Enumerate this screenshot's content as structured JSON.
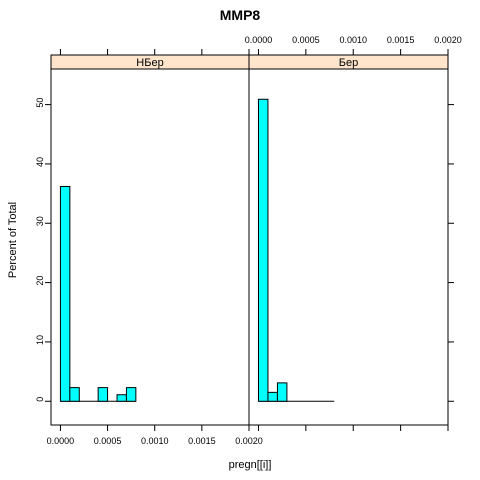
{
  "chart_data": {
    "type": "bar",
    "title": "MMP8",
    "xlabel": "pregn[[i]]",
    "ylabel": "Percent of Total",
    "x_ticks": [
      "0.0000",
      "0.0005",
      "0.0010",
      "0.0015",
      "0.0020"
    ],
    "y_ticks": [
      "0",
      "10",
      "20",
      "30",
      "40",
      "50"
    ],
    "xlim": [
      -0.0001,
      0.002
    ],
    "ylim": [
      -4,
      56
    ],
    "colors": {
      "bar_fill": "#00ffff",
      "strip_fill": "#ffe5cc"
    },
    "panels": [
      {
        "strip": "НБер",
        "bins": [
          {
            "x0": 0.0,
            "x1": 0.0001,
            "percent": 36.2
          },
          {
            "x0": 0.0001,
            "x1": 0.0002,
            "percent": 2.3
          },
          {
            "x0": 0.0002,
            "x1": 0.0003,
            "percent": 0
          },
          {
            "x0": 0.0003,
            "x1": 0.0004,
            "percent": 0
          },
          {
            "x0": 0.0004,
            "x1": 0.0005,
            "percent": 2.3
          },
          {
            "x0": 0.0005,
            "x1": 0.0006,
            "percent": 0
          },
          {
            "x0": 0.0006,
            "x1": 0.0007,
            "percent": 1.1
          },
          {
            "x0": 0.0007,
            "x1": 0.0008,
            "percent": 2.3
          }
        ]
      },
      {
        "strip": "Бер",
        "bins": [
          {
            "x0": 0.0,
            "x1": 0.0001,
            "percent": 50.9
          },
          {
            "x0": 0.0001,
            "x1": 0.0002,
            "percent": 1.5
          },
          {
            "x0": 0.0002,
            "x1": 0.0003,
            "percent": 3.1
          },
          {
            "x0": 0.0003,
            "x1": 0.0004,
            "percent": 0
          },
          {
            "x0": 0.0004,
            "x1": 0.0005,
            "percent": 0
          },
          {
            "x0": 0.0005,
            "x1": 0.0006,
            "percent": 0
          },
          {
            "x0": 0.0006,
            "x1": 0.0007,
            "percent": 0
          },
          {
            "x0": 0.0007,
            "x1": 0.0008,
            "percent": 0
          }
        ]
      }
    ]
  }
}
